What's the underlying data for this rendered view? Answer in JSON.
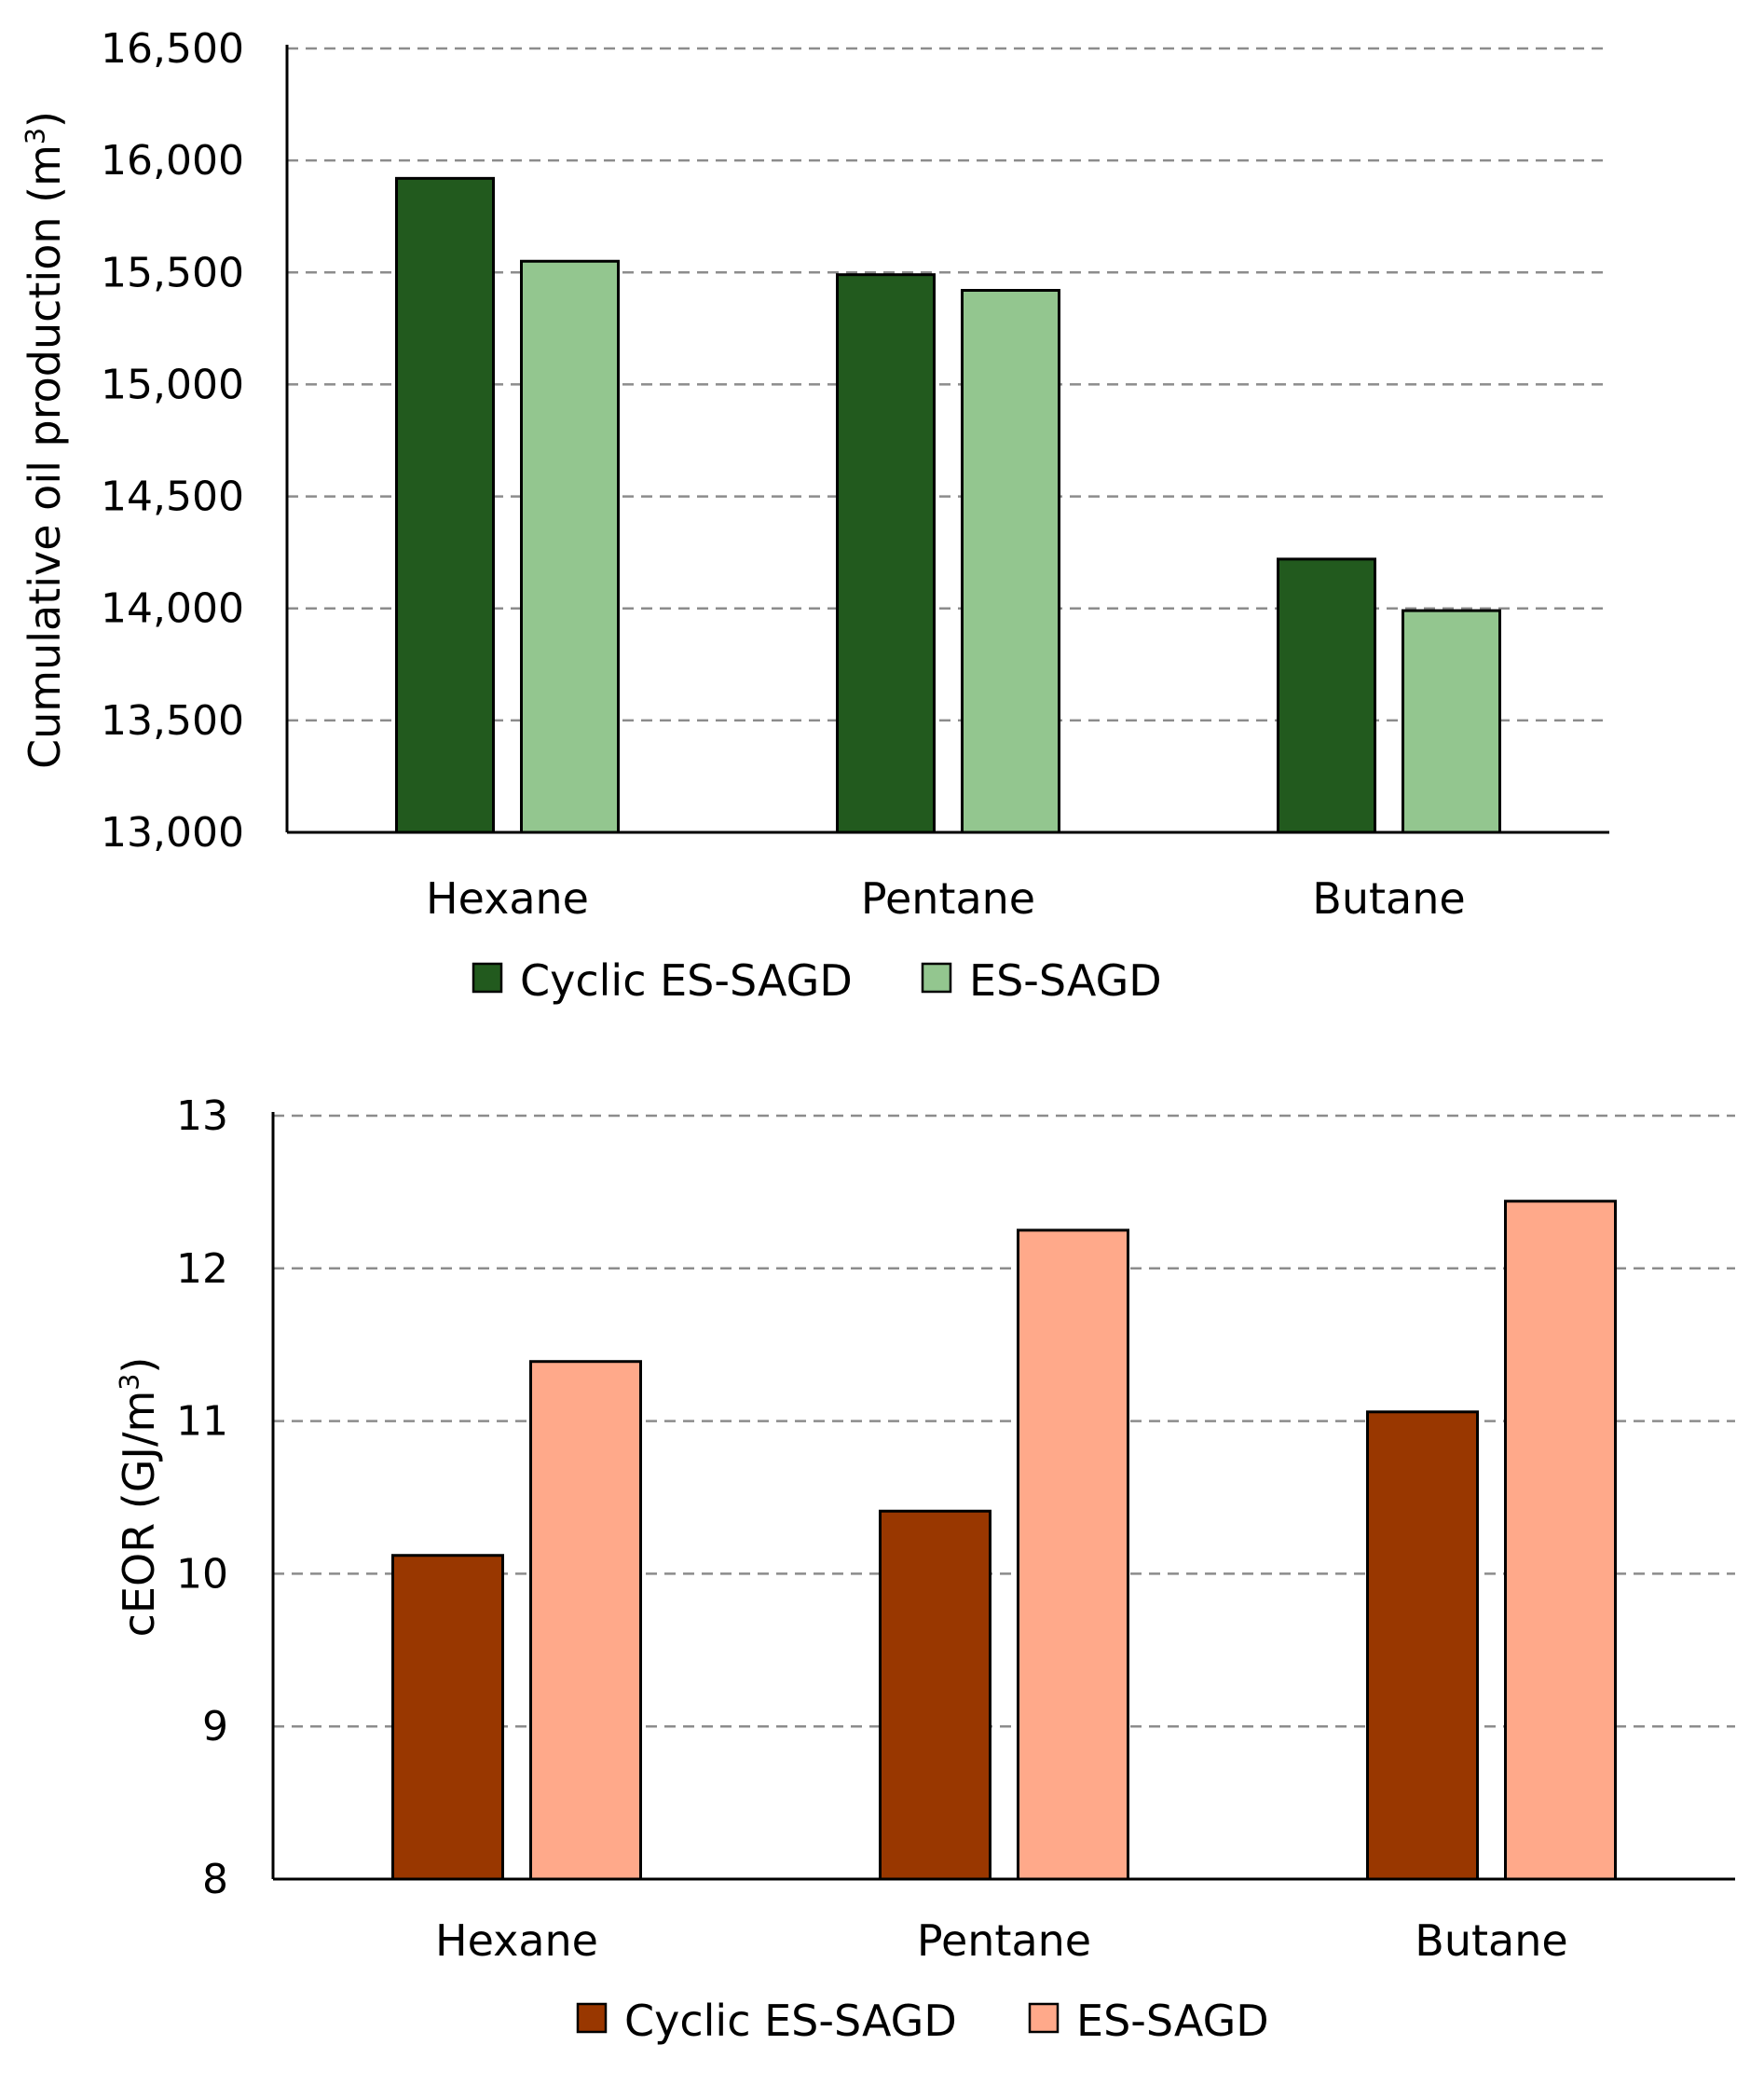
{
  "chart_data": [
    {
      "type": "bar",
      "categories": [
        "Hexane",
        "Pentane",
        "Butane"
      ],
      "series": [
        {
          "name": "Cyclic ES-SAGD",
          "values": [
            15920,
            15490,
            14220
          ],
          "color": "#225a1e"
        },
        {
          "name": "ES-SAGD",
          "values": [
            15550,
            15420,
            13990
          ],
          "color": "#93c68f"
        }
      ],
      "ylabel_main": "Cumulative oil production (m",
      "ylabel_sup": "3",
      "ylabel_tail": ")",
      "ylim": [
        13000,
        16500
      ],
      "yticks": [
        13000,
        13500,
        14000,
        14500,
        15000,
        15500,
        16000,
        16500
      ],
      "ytick_labels": [
        "13,000",
        "13,500",
        "14,000",
        "14,500",
        "15,000",
        "15,500",
        "16,000",
        "16,500"
      ],
      "grid": true,
      "legend": "bottom-center"
    },
    {
      "type": "bar",
      "categories": [
        "Hexane",
        "Pentane",
        "Butane"
      ],
      "series": [
        {
          "name": "Cyclic ES-SAGD",
          "values": [
            10.12,
            10.41,
            11.06
          ],
          "color": "#993700"
        },
        {
          "name": "ES-SAGD",
          "values": [
            11.39,
            12.25,
            12.44
          ],
          "color": "#ffa98a"
        }
      ],
      "ylabel_main": "cEOR (GJ/m",
      "ylabel_sup": "3",
      "ylabel_tail": ")",
      "ylim": [
        8,
        13
      ],
      "yticks": [
        8,
        9,
        10,
        11,
        12,
        13
      ],
      "ytick_labels": [
        "8",
        "9",
        "10",
        "11",
        "12",
        "13"
      ],
      "grid": true,
      "legend": "bottom-center"
    }
  ]
}
